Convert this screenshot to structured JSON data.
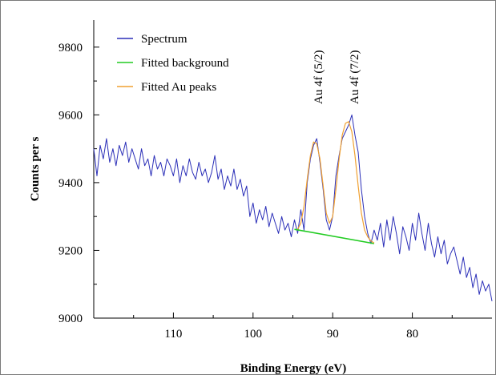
{
  "chart_data": {
    "type": "line",
    "title": "",
    "xlabel": "Binding Energy (eV)",
    "ylabel": "Counts per s",
    "xlim": [
      120,
      70
    ],
    "ylim": [
      9000,
      9880
    ],
    "x_reversed": true,
    "x_ticks": [
      110,
      100,
      90,
      80
    ],
    "y_ticks": [
      9000,
      9200,
      9400,
      9600,
      9800
    ],
    "grid": false,
    "legend_position": "top-left",
    "colors": {
      "spectrum": "#2b2fb8",
      "background": "#22cc22",
      "peaks": "#f0a030"
    },
    "series": [
      {
        "name": "Spectrum",
        "color": "#2b2fb8",
        "x": [
          120.0,
          119.6,
          119.2,
          118.8,
          118.4,
          118.0,
          117.6,
          117.2,
          116.8,
          116.4,
          116.0,
          115.6,
          115.2,
          114.8,
          114.4,
          114.0,
          113.6,
          113.2,
          112.8,
          112.4,
          112.0,
          111.6,
          111.2,
          110.8,
          110.4,
          110.0,
          109.6,
          109.2,
          108.8,
          108.4,
          108.0,
          107.6,
          107.2,
          106.8,
          106.4,
          106.0,
          105.6,
          105.2,
          104.8,
          104.4,
          104.0,
          103.6,
          103.2,
          102.8,
          102.4,
          102.0,
          101.6,
          101.2,
          100.8,
          100.4,
          100.0,
          99.6,
          99.2,
          98.8,
          98.4,
          98.0,
          97.6,
          97.2,
          96.8,
          96.4,
          96.0,
          95.6,
          95.2,
          94.8,
          94.4,
          94.0,
          93.6,
          93.2,
          92.8,
          92.4,
          92.0,
          91.6,
          91.2,
          90.8,
          90.4,
          90.0,
          89.6,
          89.2,
          88.8,
          88.4,
          88.0,
          87.6,
          87.2,
          86.8,
          86.4,
          86.0,
          85.6,
          85.2,
          84.8,
          84.4,
          84.0,
          83.6,
          83.2,
          82.8,
          82.4,
          82.0,
          81.6,
          81.2,
          80.8,
          80.4,
          80.0,
          79.6,
          79.2,
          78.8,
          78.4,
          78.0,
          77.6,
          77.2,
          76.8,
          76.4,
          76.0,
          75.6,
          75.2,
          74.8,
          74.4,
          74.0,
          73.6,
          73.2,
          72.8,
          72.4,
          72.0,
          71.6,
          71.2,
          70.8,
          70.4,
          70.0
        ],
        "y": [
          9500,
          9420,
          9510,
          9470,
          9530,
          9460,
          9500,
          9450,
          9510,
          9480,
          9520,
          9460,
          9500,
          9470,
          9440,
          9500,
          9450,
          9470,
          9420,
          9480,
          9440,
          9460,
          9420,
          9470,
          9450,
          9420,
          9470,
          9400,
          9450,
          9420,
          9470,
          9430,
          9410,
          9460,
          9420,
          9440,
          9400,
          9430,
          9480,
          9410,
          9440,
          9380,
          9420,
          9390,
          9440,
          9380,
          9410,
          9360,
          9390,
          9300,
          9340,
          9280,
          9320,
          9290,
          9330,
          9270,
          9310,
          9280,
          9250,
          9300,
          9260,
          9280,
          9240,
          9290,
          9250,
          9320,
          9260,
          9400,
          9470,
          9510,
          9530,
          9460,
          9380,
          9290,
          9260,
          9300,
          9420,
          9480,
          9530,
          9550,
          9570,
          9600,
          9540,
          9490,
          9380,
          9300,
          9250,
          9220,
          9260,
          9230,
          9280,
          9210,
          9290,
          9230,
          9300,
          9250,
          9190,
          9270,
          9240,
          9200,
          9280,
          9230,
          9310,
          9250,
          9200,
          9280,
          9220,
          9180,
          9240,
          9190,
          9230,
          9160,
          9190,
          9210,
          9170,
          9130,
          9180,
          9120,
          9150,
          9090,
          9130,
          9070,
          9110,
          9080,
          9100,
          9050
        ]
      },
      {
        "name": "Fitted background",
        "color": "#22cc22",
        "x": [
          94.8,
          84.8
        ],
        "y": [
          9262,
          9220
        ]
      },
      {
        "name": "Fitted Au peaks",
        "color": "#f0a030",
        "x": [
          94.4,
          94.0,
          93.6,
          93.2,
          92.8,
          92.4,
          92.0,
          91.6,
          91.2,
          90.8,
          90.4,
          90.0,
          89.6,
          89.2,
          88.8,
          88.4,
          88.0,
          87.6,
          87.2,
          86.8,
          86.4,
          86.0,
          85.6,
          85.2,
          84.8
        ],
        "y": [
          9262,
          9280,
          9330,
          9410,
          9480,
          9520,
          9515,
          9470,
          9390,
          9310,
          9280,
          9300,
          9380,
          9470,
          9540,
          9575,
          9580,
          9550,
          9480,
          9390,
          9310,
          9260,
          9240,
          9228,
          9222
        ]
      }
    ],
    "annotations": [
      "Au 4f (5/2)",
      "Au 4f (7/2)"
    ]
  }
}
